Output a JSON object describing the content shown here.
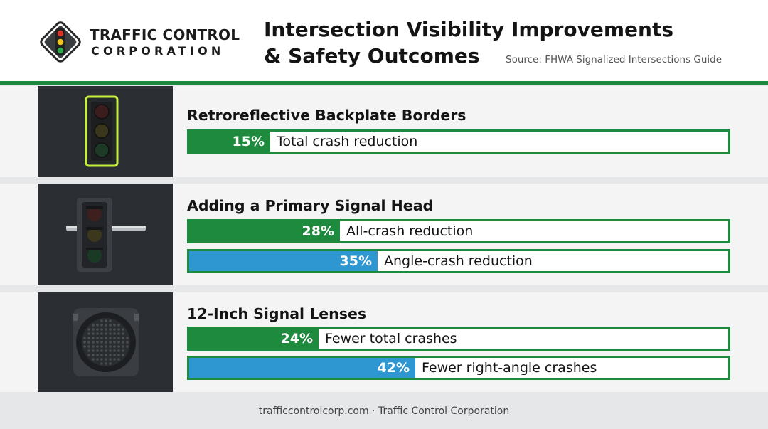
{
  "brand": {
    "name_line1": "TRAFFIC CONTROL",
    "name_line2": "CORPORATION",
    "logo_icon": "traffic-light-diamond-icon"
  },
  "header": {
    "title_line1": "Intersection Visibility Improvements",
    "title_line2": "& Safety Outcomes",
    "source": "Source: FHWA Signalized Intersections Guide"
  },
  "colors": {
    "green": "#1e8a3e",
    "blue": "#2e96d0",
    "thumb_bg": "#2b2f33"
  },
  "chart_data": {
    "type": "bar",
    "unit": "%",
    "xlim": [
      0,
      100
    ],
    "groups": [
      {
        "title": "Retroreflective Backplate Borders",
        "image": "traffic-light-with-reflective-border-icon",
        "bars": [
          {
            "value": 15,
            "value_label": "15%",
            "label": "Total crash reduction",
            "color": "green"
          }
        ]
      },
      {
        "title": "Adding a Primary Signal Head",
        "image": "pole-mounted-signal-head-icon",
        "bars": [
          {
            "value": 28,
            "value_label": "28%",
            "label": "All-crash reduction",
            "color": "green"
          },
          {
            "value": 35,
            "value_label": "35%",
            "label": "Angle-crash reduction",
            "color": "blue"
          }
        ]
      },
      {
        "title": "12-Inch Signal Lenses",
        "image": "led-signal-lens-icon",
        "bars": [
          {
            "value": 24,
            "value_label": "24%",
            "label": "Fewer total crashes",
            "color": "green"
          },
          {
            "value": 42,
            "value_label": "42%",
            "label": "Fewer right-angle crashes",
            "color": "blue"
          }
        ]
      }
    ]
  },
  "footer": {
    "text": "trafficcontrolcorp.com · Traffic Control Corporation"
  }
}
